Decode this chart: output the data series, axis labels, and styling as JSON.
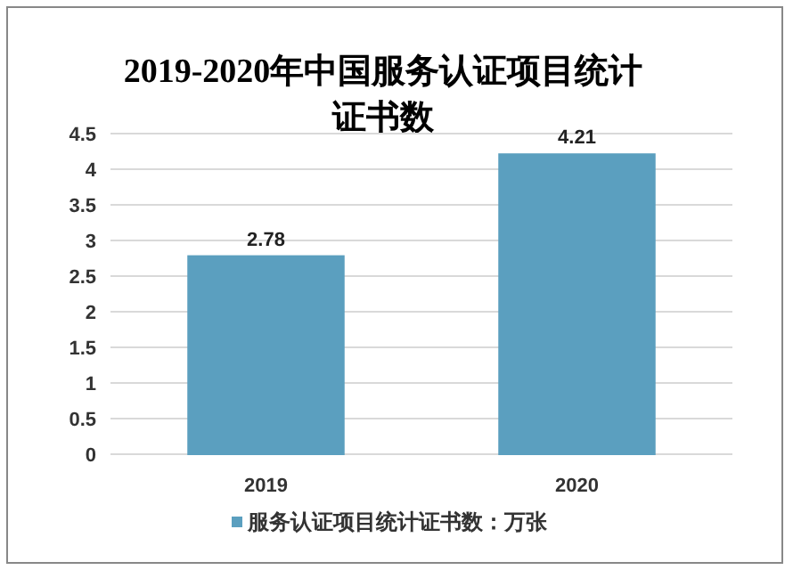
{
  "chart_data": {
    "type": "bar",
    "title": "2019-2020年中国服务认证项目统计证书数",
    "categories": [
      "2019",
      "2020"
    ],
    "series": [
      {
        "name": "服务认证项目统计证书数：万张",
        "color": "#5b9fbf",
        "values": [
          2.78,
          4.21
        ]
      }
    ],
    "ylim": [
      0,
      4.5
    ],
    "yticks": [
      0,
      0.5,
      1,
      1.5,
      2,
      2.5,
      3,
      3.5,
      4,
      4.5
    ],
    "grid": "y",
    "legend": "bottom",
    "data_labels": true
  }
}
